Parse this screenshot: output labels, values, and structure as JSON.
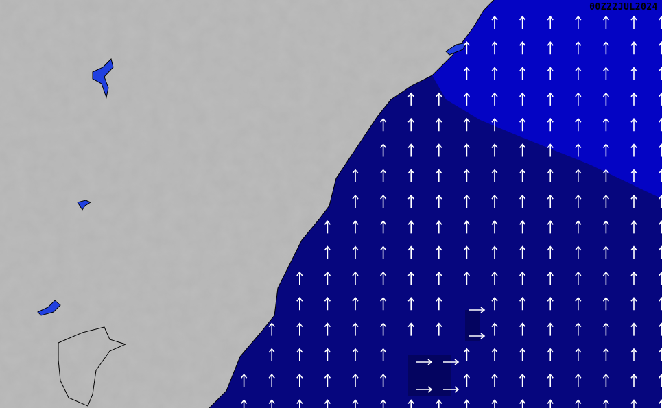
{
  "timestamp": "00Z22JUL2024",
  "colors": {
    "land": "#b4b4b4",
    "sea_dark": "#06067e",
    "sea_light": "#0404c4",
    "lakes": "#2040e0",
    "arrows": "#ffffff",
    "calm_patch": "#040460"
  },
  "arrows": {
    "prevailing_direction": "north",
    "secondary_direction": "east"
  }
}
